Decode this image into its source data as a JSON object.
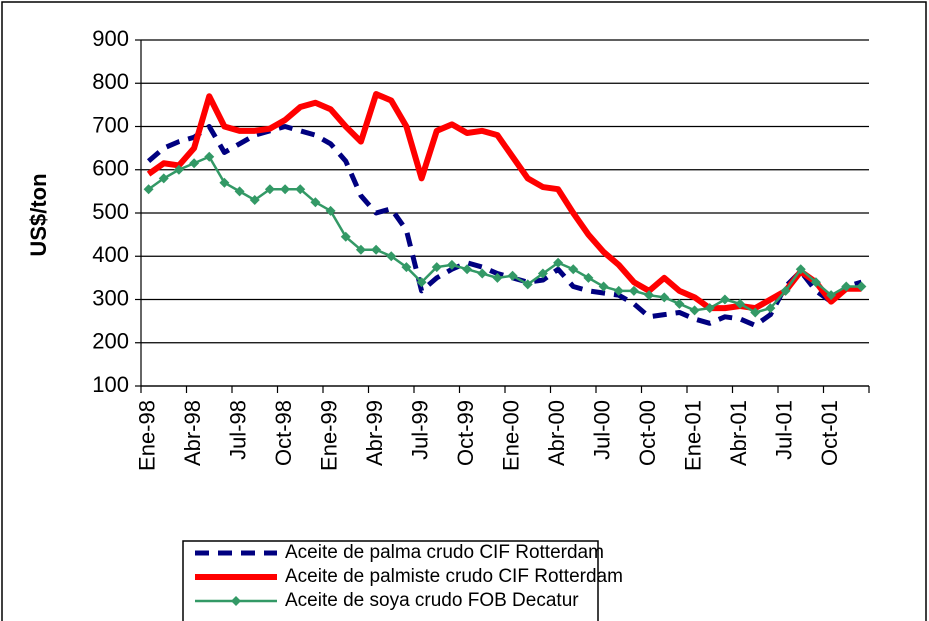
{
  "chart_data": {
    "type": "line",
    "y_label": "US$/ton",
    "categories": [
      "Ene-98",
      null,
      null,
      "Abr-98",
      null,
      null,
      "Jul-98",
      null,
      null,
      "Oct-98",
      null,
      null,
      "Ene-99",
      null,
      null,
      "Abr-99",
      null,
      null,
      "Jul-99",
      null,
      null,
      "Oct-99",
      null,
      null,
      "Ene-00",
      null,
      null,
      "Abr-00",
      null,
      null,
      "Jul-00",
      null,
      null,
      "Oct-00",
      null,
      null,
      "Ene-01",
      null,
      null,
      "Abr-01",
      null,
      null,
      "Jul-01",
      null,
      null,
      "Oct-01",
      null,
      null
    ],
    "ylim": [
      100,
      900
    ],
    "yticks": [
      100,
      200,
      300,
      400,
      500,
      600,
      700,
      800,
      900
    ],
    "grid": true,
    "series": [
      {
        "name": "Aceite de palma crudo CIF Rotterdam",
        "color": "#000080",
        "style": "dashed",
        "values": [
          620,
          650,
          665,
          675,
          700,
          640,
          660,
          680,
          690,
          700,
          690,
          680,
          660,
          620,
          540,
          500,
          510,
          460,
          320,
          350,
          370,
          385,
          375,
          360,
          350,
          340,
          345,
          370,
          330,
          320,
          315,
          310,
          290,
          260,
          265,
          270,
          255,
          245,
          260,
          255,
          240,
          265,
          330,
          365,
          320,
          295,
          330,
          340
        ]
      },
      {
        "name": "Aceite de palmiste crudo CIF Rotterdam",
        "color": "#ff0000",
        "style": "solid",
        "values": [
          590,
          615,
          610,
          650,
          770,
          700,
          690,
          690,
          695,
          715,
          745,
          755,
          740,
          700,
          665,
          775,
          760,
          700,
          580,
          690,
          705,
          685,
          690,
          680,
          630,
          580,
          560,
          555,
          500,
          450,
          410,
          380,
          340,
          320,
          350,
          320,
          305,
          280,
          280,
          285,
          280,
          300,
          320,
          365,
          340,
          295,
          325,
          325
        ]
      },
      {
        "name": "Aceite de soya crudo FOB Decatur",
        "color": "#339966",
        "style": "marker",
        "values": [
          555,
          580,
          600,
          615,
          630,
          570,
          550,
          530,
          555,
          555,
          555,
          525,
          505,
          445,
          415,
          415,
          400,
          375,
          340,
          375,
          380,
          370,
          360,
          350,
          355,
          335,
          360,
          385,
          370,
          350,
          330,
          320,
          320,
          310,
          305,
          290,
          275,
          280,
          300,
          290,
          270,
          280,
          320,
          370,
          340,
          310,
          330,
          330
        ]
      }
    ]
  }
}
